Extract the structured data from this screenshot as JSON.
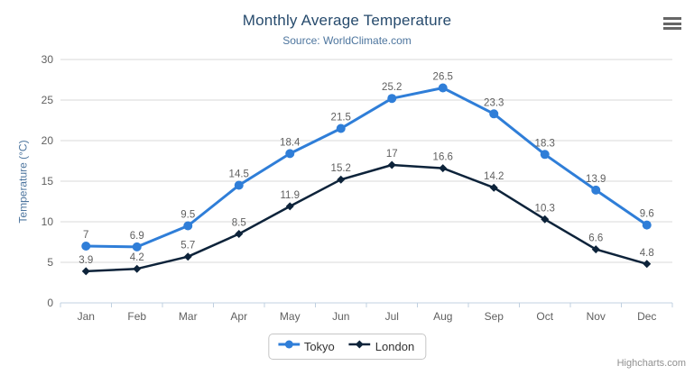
{
  "chart_data": {
    "type": "line",
    "title": "Monthly Average Temperature",
    "subtitle": "Source: WorldClimate.com",
    "categories": [
      "Jan",
      "Feb",
      "Mar",
      "Apr",
      "May",
      "Jun",
      "Jul",
      "Aug",
      "Sep",
      "Oct",
      "Nov",
      "Dec"
    ],
    "series": [
      {
        "name": "Tokyo",
        "color": "#2f7ed8",
        "marker": "circle",
        "values": [
          7,
          6.9,
          9.5,
          14.5,
          18.4,
          21.5,
          25.2,
          26.5,
          23.3,
          18.3,
          13.9,
          9.6
        ]
      },
      {
        "name": "London",
        "color": "#0d233a",
        "marker": "diamond",
        "values": [
          3.9,
          4.2,
          5.7,
          8.5,
          11.9,
          15.2,
          17,
          16.6,
          14.2,
          10.3,
          6.6,
          4.8
        ]
      }
    ],
    "xlabel": "",
    "ylabel": "Temperature (°C)",
    "ylim": [
      0,
      30
    ],
    "ytick_interval": 5,
    "grid": true,
    "legend_position": "bottom",
    "data_labels": true
  },
  "icons": {
    "menu": "hamburger-menu-icon"
  },
  "credits": {
    "text": "Highcharts.com"
  },
  "colors": {
    "tokyo": "#2f7ed8",
    "london": "#0d233a",
    "title": "#274b6d",
    "subtitle": "#4d759e",
    "axis_title": "#4d759e",
    "axis_label": "#606060",
    "data_label": "#606060",
    "grid_line": "#d8d8d8",
    "axis_line": "#c0d0e0",
    "legend_text": "#333333",
    "legend_border": "#c6c6c6",
    "menu_icon": "#666666",
    "credits": "#909090",
    "background": "#ffffff"
  }
}
